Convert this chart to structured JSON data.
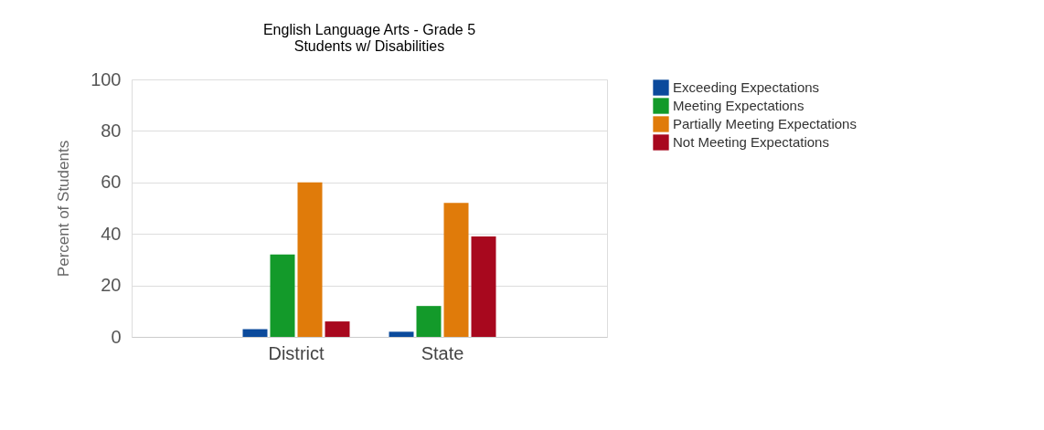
{
  "chart_data": {
    "type": "bar",
    "title": "English Language Arts - Grade 5",
    "subtitle": "Students w/ Disabilities",
    "ylabel": "Percent of Students",
    "categories": [
      "District",
      "State"
    ],
    "series": [
      {
        "name": "Exceeding Expectations",
        "color": "#0b4a9c",
        "values": [
          3,
          2
        ]
      },
      {
        "name": "Meeting Expectations",
        "color": "#139a2a",
        "values": [
          32,
          12
        ]
      },
      {
        "name": "Partially Meeting Expectations",
        "color": "#e07b0a",
        "values": [
          60,
          52
        ]
      },
      {
        "name": "Not Meeting Expectations",
        "color": "#a8081e",
        "values": [
          6,
          39
        ]
      }
    ],
    "ylim": [
      0,
      100
    ],
    "yticks": [
      0,
      20,
      40,
      60,
      80,
      100
    ],
    "grid": "y",
    "legend": "right"
  }
}
